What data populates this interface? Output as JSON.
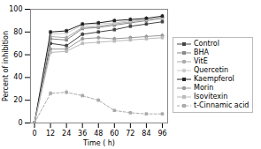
{
  "chart_data": {
    "type": "line",
    "x": [
      0,
      12,
      24,
      36,
      48,
      60,
      72,
      84,
      96
    ],
    "xlabel": "Time ( h)",
    "ylabel": "Percent of inhibition",
    "xlim": [
      -3,
      100
    ],
    "ylim": [
      0,
      100
    ],
    "xticks": [
      0,
      12,
      24,
      36,
      48,
      60,
      72,
      84,
      96
    ],
    "yticks": [
      0,
      20,
      40,
      60,
      80,
      100
    ],
    "grid": false,
    "legend": "right",
    "series": [
      {
        "name": "Control",
        "color": "#444444",
        "marker": "square",
        "line_style": "solid",
        "values": [
          0,
          70,
          68,
          78,
          80,
          82,
          85,
          87,
          89
        ],
        "errors": [
          0,
          1.5,
          1.5,
          1.5,
          1.5,
          1.5,
          1.5,
          1.5,
          1.5
        ]
      },
      {
        "name": "BHA",
        "color": "#888888",
        "marker": "square",
        "line_style": "solid",
        "values": [
          0,
          74,
          73,
          83,
          84,
          86,
          88,
          90,
          92
        ],
        "errors": [
          0,
          1.5,
          1.5,
          1.5,
          1.5,
          1.5,
          1.5,
          1.5,
          1.5
        ]
      },
      {
        "name": "VitE",
        "color": "#aaaaaa",
        "marker": "circle",
        "line_style": "solid",
        "values": [
          0,
          76,
          75,
          84,
          85,
          87,
          89,
          91,
          93
        ],
        "errors": [
          0,
          1.5,
          1.5,
          1.5,
          1.5,
          1.5,
          1.5,
          1.5,
          1.5
        ]
      },
      {
        "name": "Quercetin",
        "color": "#cccccc",
        "marker": "circle",
        "line_style": "solid",
        "values": [
          0,
          78,
          79,
          86,
          87,
          88,
          90,
          91,
          93
        ],
        "errors": [
          0,
          1.5,
          1.5,
          1.5,
          1.5,
          1.5,
          1.5,
          1.5,
          1.5
        ]
      },
      {
        "name": "Kaempferol",
        "color": "#222222",
        "marker": "square",
        "line_style": "solid",
        "values": [
          0,
          80,
          81,
          87,
          88,
          90,
          91,
          92,
          94
        ],
        "errors": [
          0,
          1.5,
          1.5,
          1.5,
          1.5,
          1.5,
          1.5,
          1.5,
          1.5
        ]
      },
      {
        "name": "Morin",
        "color": "#999999",
        "marker": "circle",
        "line_style": "solid",
        "values": [
          0,
          65,
          65,
          74,
          75,
          74,
          75,
          76,
          77
        ],
        "errors": [
          0,
          1.5,
          1.5,
          1.5,
          1.5,
          1.5,
          1.5,
          1.5,
          1.5
        ]
      },
      {
        "name": "Isovitexin",
        "color": "#bbbbbb",
        "marker": "square",
        "line_style": "solid",
        "values": [
          0,
          62,
          63,
          70,
          71,
          72,
          73,
          74,
          75
        ],
        "errors": [
          0,
          1.5,
          1.5,
          1.5,
          1.5,
          1.5,
          1.5,
          1.5,
          1.5
        ]
      },
      {
        "name": "t-Cinnamic acid",
        "color": "#aaaaaa",
        "marker": "square",
        "line_style": "dashed",
        "values": [
          0,
          26,
          27,
          24,
          20,
          11,
          9,
          8,
          8
        ],
        "errors": [
          0,
          2.0,
          2.0,
          1.5,
          1.5,
          1.0,
          1.0,
          1.0,
          1.0
        ]
      }
    ]
  }
}
